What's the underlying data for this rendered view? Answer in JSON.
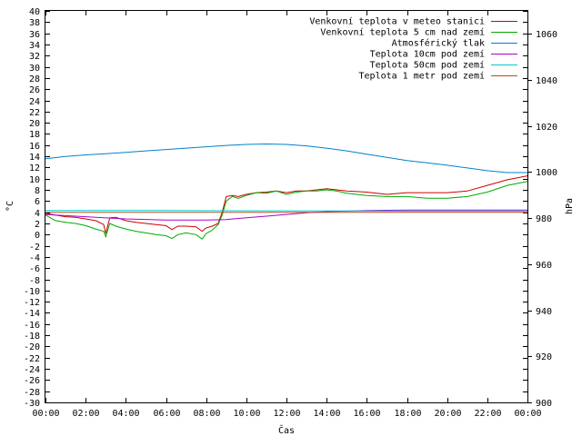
{
  "chart_data": {
    "type": "line",
    "xlabel": "Čas",
    "ylabel": "°C",
    "y2label": "hPa",
    "ylim": [
      -30,
      40
    ],
    "y2lim": [
      900,
      1070
    ],
    "xlim": [
      0,
      24
    ],
    "y_ticks": [
      "-30",
      "-28",
      "-26",
      "-24",
      "-22",
      "-20",
      "-18",
      "-16",
      "-14",
      "-12",
      "-10",
      "-8",
      "-6",
      "-4",
      "-2",
      "0",
      "2",
      "4",
      "6",
      "8",
      "10",
      "12",
      "14",
      "16",
      "18",
      "20",
      "22",
      "24",
      "26",
      "28",
      "30",
      "32",
      "34",
      "36",
      "38",
      "40"
    ],
    "y2_ticks": [
      "900",
      "920",
      "940",
      "960",
      "980",
      "1000",
      "1020",
      "1040",
      "1060"
    ],
    "x_ticks": [
      "00:00",
      "02:00",
      "04:00",
      "06:00",
      "08:00",
      "10:00",
      "12:00",
      "14:00",
      "16:00",
      "18:00",
      "20:00",
      "22:00",
      "00:00"
    ],
    "legend_position": "top-right",
    "grid": false,
    "series": [
      {
        "name": "Venkovní teplota v meteo stanici",
        "color": "#cc0000",
        "axis": "left",
        "x": [
          0,
          0.5,
          1,
          1.5,
          2,
          2.5,
          2.9,
          3.0,
          3.2,
          3.5,
          4,
          4.5,
          5,
          5.5,
          6,
          6.3,
          6.6,
          7,
          7.5,
          7.8,
          8,
          8.3,
          8.6,
          8.8,
          9,
          9.3,
          9.6,
          10,
          10.5,
          11,
          11.5,
          12,
          12.5,
          13,
          13.5,
          14,
          14.5,
          15,
          16,
          17,
          18,
          19,
          20,
          21,
          22,
          23,
          24
        ],
        "y": [
          3.8,
          3.5,
          3.2,
          3.1,
          2.8,
          2.5,
          1.8,
          0.2,
          3.0,
          3.1,
          2.5,
          2.2,
          2.0,
          1.8,
          1.6,
          0.9,
          1.5,
          1.5,
          1.4,
          0.6,
          1.2,
          1.5,
          2.0,
          4.0,
          6.8,
          7.0,
          6.8,
          7.2,
          7.5,
          7.6,
          7.8,
          7.5,
          7.8,
          7.8,
          8.0,
          8.2,
          8.0,
          7.8,
          7.6,
          7.2,
          7.5,
          7.5,
          7.5,
          7.8,
          8.8,
          9.8,
          10.5
        ]
      },
      {
        "name": "Venkovní teplota 5 cm nad zemí",
        "color": "#00aa00",
        "axis": "left",
        "x": [
          0,
          0.5,
          1,
          1.5,
          2,
          2.5,
          2.9,
          3.0,
          3.2,
          3.5,
          4,
          4.5,
          5,
          5.5,
          6,
          6.3,
          6.6,
          7,
          7.5,
          7.8,
          8,
          8.3,
          8.6,
          8.8,
          9,
          9.3,
          9.6,
          10,
          10.5,
          11,
          11.5,
          12,
          12.5,
          13,
          13.5,
          14,
          14.5,
          15,
          16,
          17,
          18,
          19,
          20,
          21,
          22,
          23,
          24
        ],
        "y": [
          3.5,
          2.5,
          2.2,
          2.0,
          1.6,
          1.0,
          0.6,
          -0.4,
          2.0,
          1.5,
          1.0,
          0.6,
          0.3,
          0.0,
          -0.2,
          -0.7,
          0.0,
          0.3,
          0.0,
          -0.8,
          0.2,
          0.8,
          1.8,
          3.5,
          6.0,
          6.8,
          6.5,
          7.0,
          7.5,
          7.4,
          7.8,
          7.2,
          7.6,
          7.8,
          7.8,
          8.0,
          7.8,
          7.4,
          7.0,
          6.8,
          6.8,
          6.5,
          6.5,
          6.8,
          7.6,
          8.8,
          9.5
        ]
      },
      {
        "name": "Atmosférický tlak",
        "color": "#0080cc",
        "axis": "right",
        "x": [
          0,
          1,
          2,
          3,
          4,
          5,
          6,
          7,
          8,
          9,
          10,
          11,
          12,
          13,
          14,
          15,
          16,
          17,
          18,
          19,
          20,
          21,
          22,
          23,
          24
        ],
        "y": [
          1005.8,
          1006.8,
          1007.5,
          1008.0,
          1008.6,
          1009.2,
          1009.8,
          1010.4,
          1011.0,
          1011.6,
          1012.0,
          1012.2,
          1012.0,
          1011.4,
          1010.4,
          1009.2,
          1007.8,
          1006.4,
          1005.0,
          1004.0,
          1003.0,
          1001.8,
          1000.6,
          999.8,
          999.8
        ]
      },
      {
        "name": "Teplota 10cm pod zemí",
        "color": "#aa00cc",
        "axis": "left",
        "x": [
          0,
          2,
          4,
          6,
          8,
          9,
          10,
          11,
          12,
          13,
          14,
          16,
          18,
          20,
          22,
          24
        ],
        "y": [
          3.6,
          3.2,
          2.8,
          2.6,
          2.6,
          2.7,
          3.0,
          3.3,
          3.6,
          3.9,
          4.1,
          4.3,
          4.4,
          4.4,
          4.4,
          4.4
        ]
      },
      {
        "name": "Teplota 50cm pod zemí",
        "color": "#00cccc",
        "axis": "left",
        "x": [
          0,
          6,
          12,
          18,
          24
        ],
        "y": [
          4.3,
          4.3,
          4.25,
          4.2,
          4.2
        ]
      },
      {
        "name": "Teplota 1 metr pod zemí",
        "color": "#aa5522",
        "axis": "left",
        "x": [
          0,
          6,
          12,
          18,
          24
        ],
        "y": [
          4.0,
          4.0,
          4.0,
          4.0,
          4.0
        ]
      }
    ]
  }
}
